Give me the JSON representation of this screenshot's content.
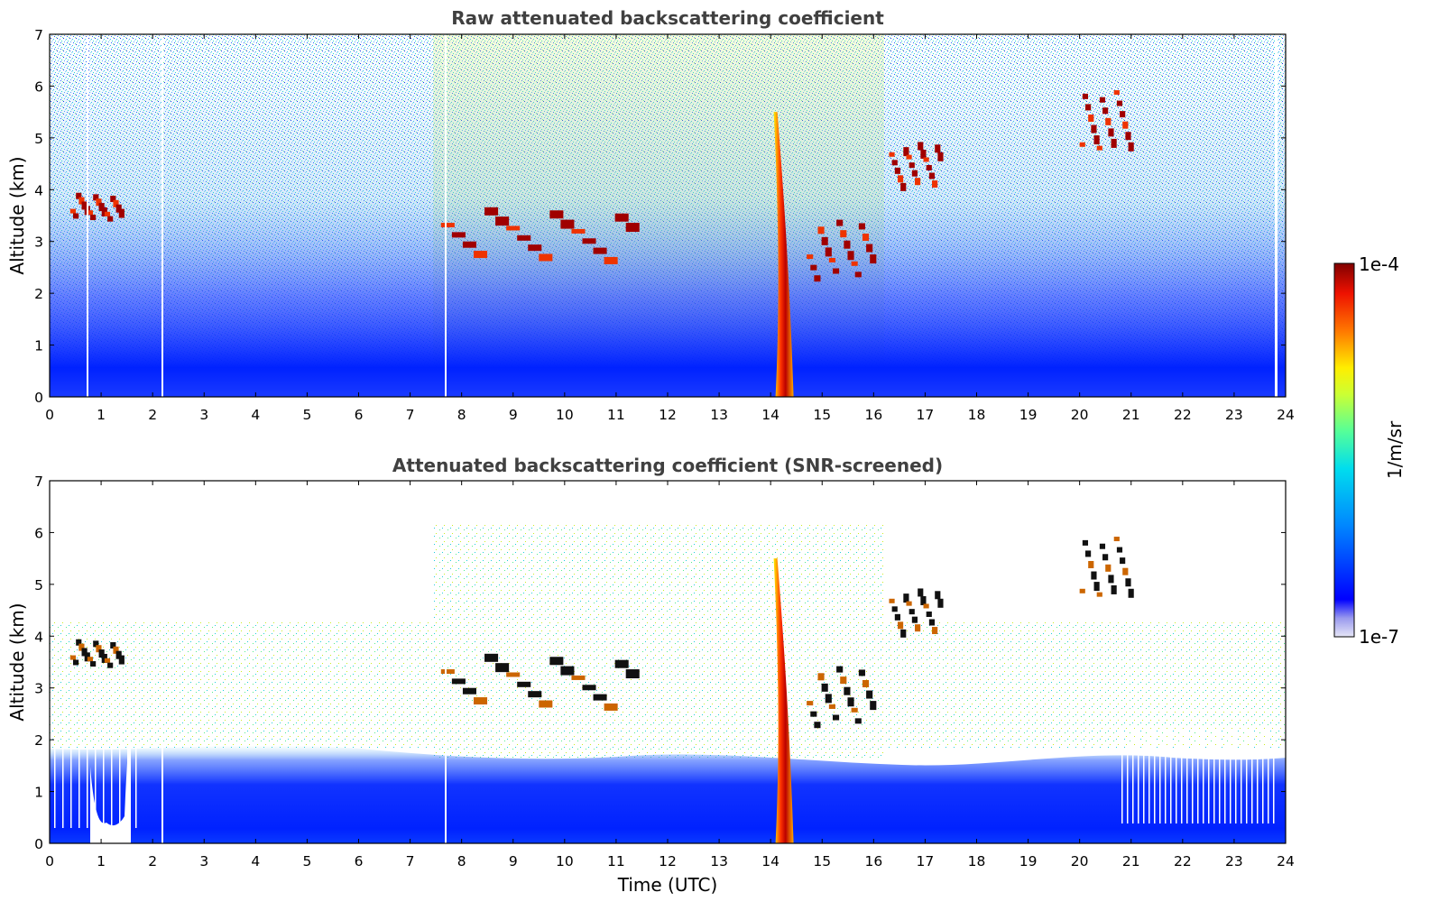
{
  "chart_data": [
    {
      "type": "heatmap",
      "title": "Raw attenuated backscattering coefficient",
      "xlabel": "",
      "ylabel": "Altitude (km)",
      "xlim": [
        0,
        24
      ],
      "ylim": [
        0,
        7
      ],
      "xticks": [
        "0",
        "1",
        "2",
        "3",
        "4",
        "5",
        "6",
        "7",
        "8",
        "9",
        "10",
        "11",
        "12",
        "13",
        "14",
        "15",
        "16",
        "17",
        "18",
        "19",
        "20",
        "21",
        "22",
        "23",
        "24"
      ],
      "yticks": [
        "0",
        "1",
        "2",
        "3",
        "4",
        "5",
        "6",
        "7"
      ],
      "grid": false,
      "features": [
        {
          "kind": "aerosol_layer",
          "x": [
            0,
            24
          ],
          "y": [
            0,
            0.6
          ],
          "level": "high"
        },
        {
          "kind": "cloud",
          "x": [
            0.4,
            1.4
          ],
          "y": [
            3.3,
            4.1
          ]
        },
        {
          "kind": "cloud",
          "x": [
            7.6,
            11.4
          ],
          "y": [
            2.3,
            4.0
          ]
        },
        {
          "kind": "cloud",
          "x": [
            13.8,
            14.6
          ],
          "y": [
            0,
            5.5
          ]
        },
        {
          "kind": "cloud",
          "x": [
            14.7,
            16.0
          ],
          "y": [
            1.9,
            3.8
          ]
        },
        {
          "kind": "cloud",
          "x": [
            16.3,
            17.3
          ],
          "y": [
            3.8,
            5.2
          ]
        },
        {
          "kind": "cloud",
          "x": [
            20.0,
            21.0
          ],
          "y": [
            4.4,
            6.3
          ]
        }
      ]
    },
    {
      "type": "heatmap",
      "title": "Attenuated backscattering coefficient (SNR-screened)",
      "xlabel": "Time (UTC)",
      "ylabel": "Altitude (km)",
      "xlim": [
        0,
        24
      ],
      "ylim": [
        0,
        7
      ],
      "xticks": [
        "0",
        "1",
        "2",
        "3",
        "4",
        "5",
        "6",
        "7",
        "8",
        "9",
        "10",
        "11",
        "12",
        "13",
        "14",
        "15",
        "16",
        "17",
        "18",
        "19",
        "20",
        "21",
        "22",
        "23",
        "24"
      ],
      "yticks": [
        "0",
        "1",
        "2",
        "3",
        "4",
        "5",
        "6",
        "7"
      ],
      "grid": false,
      "features": [
        {
          "kind": "aerosol_layer",
          "x": [
            0,
            24
          ],
          "y": [
            0,
            1.9
          ],
          "level": "screened"
        },
        {
          "kind": "cloud",
          "x": [
            0.4,
            1.4
          ],
          "y": [
            3.3,
            4.1
          ]
        },
        {
          "kind": "cloud",
          "x": [
            7.6,
            11.4
          ],
          "y": [
            2.3,
            4.0
          ]
        },
        {
          "kind": "cloud",
          "x": [
            13.8,
            14.6
          ],
          "y": [
            0,
            5.5
          ]
        },
        {
          "kind": "cloud",
          "x": [
            14.7,
            16.0
          ],
          "y": [
            1.9,
            3.8
          ]
        },
        {
          "kind": "cloud",
          "x": [
            16.3,
            17.3
          ],
          "y": [
            3.8,
            5.2
          ]
        },
        {
          "kind": "cloud",
          "x": [
            20.0,
            21.0
          ],
          "y": [
            4.4,
            6.3
          ]
        }
      ]
    }
  ],
  "colorbar": {
    "label": "1/m/sr",
    "max_label": "1e-4",
    "min_label": "1e-7",
    "scale": "log",
    "colormap": "jet",
    "stops": [
      "#e6e6f6",
      "#0000ff",
      "#00aaff",
      "#00ffcc",
      "#aaff55",
      "#ffee00",
      "#ff6600",
      "#dd0000",
      "#7f0000"
    ]
  }
}
